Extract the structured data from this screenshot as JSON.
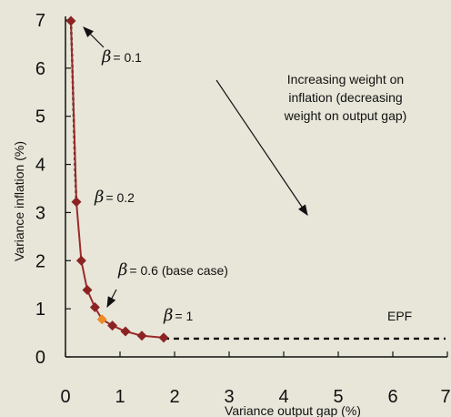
{
  "chart_data": {
    "type": "line",
    "xlabel": "Variance output gap (%)",
    "ylabel": "Variance inflation (%)",
    "xlim": [
      0,
      7
    ],
    "ylim": [
      0,
      7
    ],
    "x_ticks": [
      "0",
      "1",
      "2",
      "3",
      "4",
      "5",
      "6",
      "7"
    ],
    "y_ticks": [
      "0",
      "1",
      "2",
      "3",
      "4",
      "5",
      "6",
      "7"
    ],
    "grid": false,
    "series": [
      {
        "name": "",
        "line_color": "#9b2a2a",
        "marker_color": "#8b2323",
        "points": [
          {
            "x": 0.1,
            "y": 6.98
          },
          {
            "x": 0.2,
            "y": 3.22
          },
          {
            "x": 0.29,
            "y": 2.0
          },
          {
            "x": 0.4,
            "y": 1.39
          },
          {
            "x": 0.54,
            "y": 1.03
          },
          {
            "x": 0.67,
            "y": 0.78,
            "highlight": true
          },
          {
            "x": 0.86,
            "y": 0.65
          },
          {
            "x": 1.1,
            "y": 0.53
          },
          {
            "x": 1.4,
            "y": 0.44
          },
          {
            "x": 1.8,
            "y": 0.4
          }
        ],
        "highlight_color": "#f08a24"
      }
    ],
    "epf_dotted": {
      "color": "#111111",
      "points": [
        {
          "x": 0.1,
          "y": 6.98
        },
        {
          "x": 0.12,
          "y": 6.3
        },
        {
          "x": 0.15,
          "y": 5.0
        },
        {
          "x": 0.18,
          "y": 3.8
        },
        {
          "x": 0.2,
          "y": 3.22
        }
      ],
      "flat": {
        "from_x": 1.8,
        "to_x": 7.0,
        "y": 0.38
      }
    },
    "annotations": [
      {
        "beta_symbol": "β",
        "text": "= 0.1",
        "target": {
          "x": 0.1,
          "y": 6.98
        }
      },
      {
        "beta_symbol": "β",
        "text": "= 0.2",
        "target": {
          "x": 0.2,
          "y": 3.22
        }
      },
      {
        "beta_symbol": "β",
        "text": "= 0.6 (base case)",
        "target": {
          "x": 0.67,
          "y": 0.78
        }
      },
      {
        "beta_symbol": "β",
        "text": "= 1",
        "target": {
          "x": 1.8,
          "y": 0.4
        }
      }
    ],
    "trend_text": [
      "Increasing weight on",
      "inflation (decreasing",
      "weight on output gap)"
    ],
    "epf_label": "EPF"
  }
}
